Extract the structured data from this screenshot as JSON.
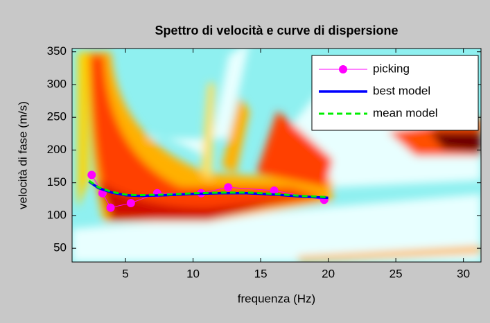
{
  "chart_data": {
    "type": "line",
    "title": "Spettro di velocità e curve di dispersione",
    "x_label": "frequenza (Hz)",
    "y_label": "velocità di fase (m/s)",
    "xlim": [
      1.05,
      31.3
    ],
    "xticks": [
      5,
      10,
      15,
      20,
      25,
      30
    ],
    "ylim": [
      29,
      355
    ],
    "yticks": [
      50,
      100,
      150,
      200,
      250,
      300,
      350
    ],
    "legend": "upper right",
    "series": [
      {
        "name": "picking",
        "color": "#ff00ff",
        "marker": "circle",
        "dash": false,
        "width": 1,
        "x": [
          2.5,
          3.3,
          3.9,
          5.4,
          7.35,
          10.6,
          12.6,
          16.0,
          19.7
        ],
        "values": [
          162,
          134,
          112,
          119,
          134,
          134,
          143,
          138,
          124
        ]
      },
      {
        "name": "best model",
        "color": "#0000ff",
        "marker": null,
        "dash": false,
        "width": 3.5,
        "x": [
          2.3,
          3,
          4,
          5,
          6,
          8,
          10,
          12,
          14,
          16,
          18,
          20
        ],
        "values": [
          152,
          142,
          135,
          131,
          130,
          131,
          133,
          134,
          134,
          132,
          129,
          127
        ]
      },
      {
        "name": "mean model",
        "color": "#00ee00",
        "marker": null,
        "dash": true,
        "width": 3,
        "x": [
          2.3,
          3,
          4,
          5,
          6,
          8,
          10,
          12,
          14,
          16,
          18,
          20
        ],
        "values": [
          153,
          143,
          136,
          132,
          131,
          132,
          134,
          135,
          135,
          133,
          130,
          128
        ]
      }
    ]
  }
}
